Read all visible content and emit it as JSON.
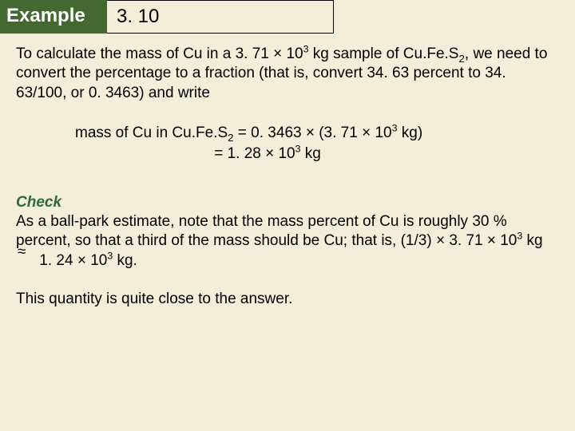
{
  "header": {
    "label": "Example",
    "number": "3. 10"
  },
  "body": {
    "p1_a": "To calculate the mass of Cu in a 3. 71 × 10",
    "p1_b": " kg sample of Cu.Fe.S",
    "p1_c": ", we need to convert the percentage to a fraction (that is, convert 34. 63 percent to 34. 63/100, or 0. 3463) and write",
    "exp3": "3",
    "sub2": "2",
    "calc1_a": "mass of Cu in Cu.Fe.S",
    "calc1_b": " = 0. 3463 × (3. 71 × 10",
    "calc1_c": " kg)",
    "calc2_pad": "                                ",
    "calc2_a": " = 1. 28 × 10",
    "calc2_b": " kg",
    "check_label": "Check",
    "check_a": "As a ball-park estimate, note that the mass percent of Cu is roughly 30 % percent, so that a third of the mass should be Cu; that is,  (1/3) × 3. 71 × 10",
    "check_b": " kg ",
    "approx": "≈",
    "check_c": "  1. 24 × 10",
    "check_d": " kg.",
    "closing": "This quantity is quite close to the answer."
  },
  "colors": {
    "bg": "#f2eed9",
    "header_bg": "#436830",
    "check_color": "#2f6a3f"
  }
}
